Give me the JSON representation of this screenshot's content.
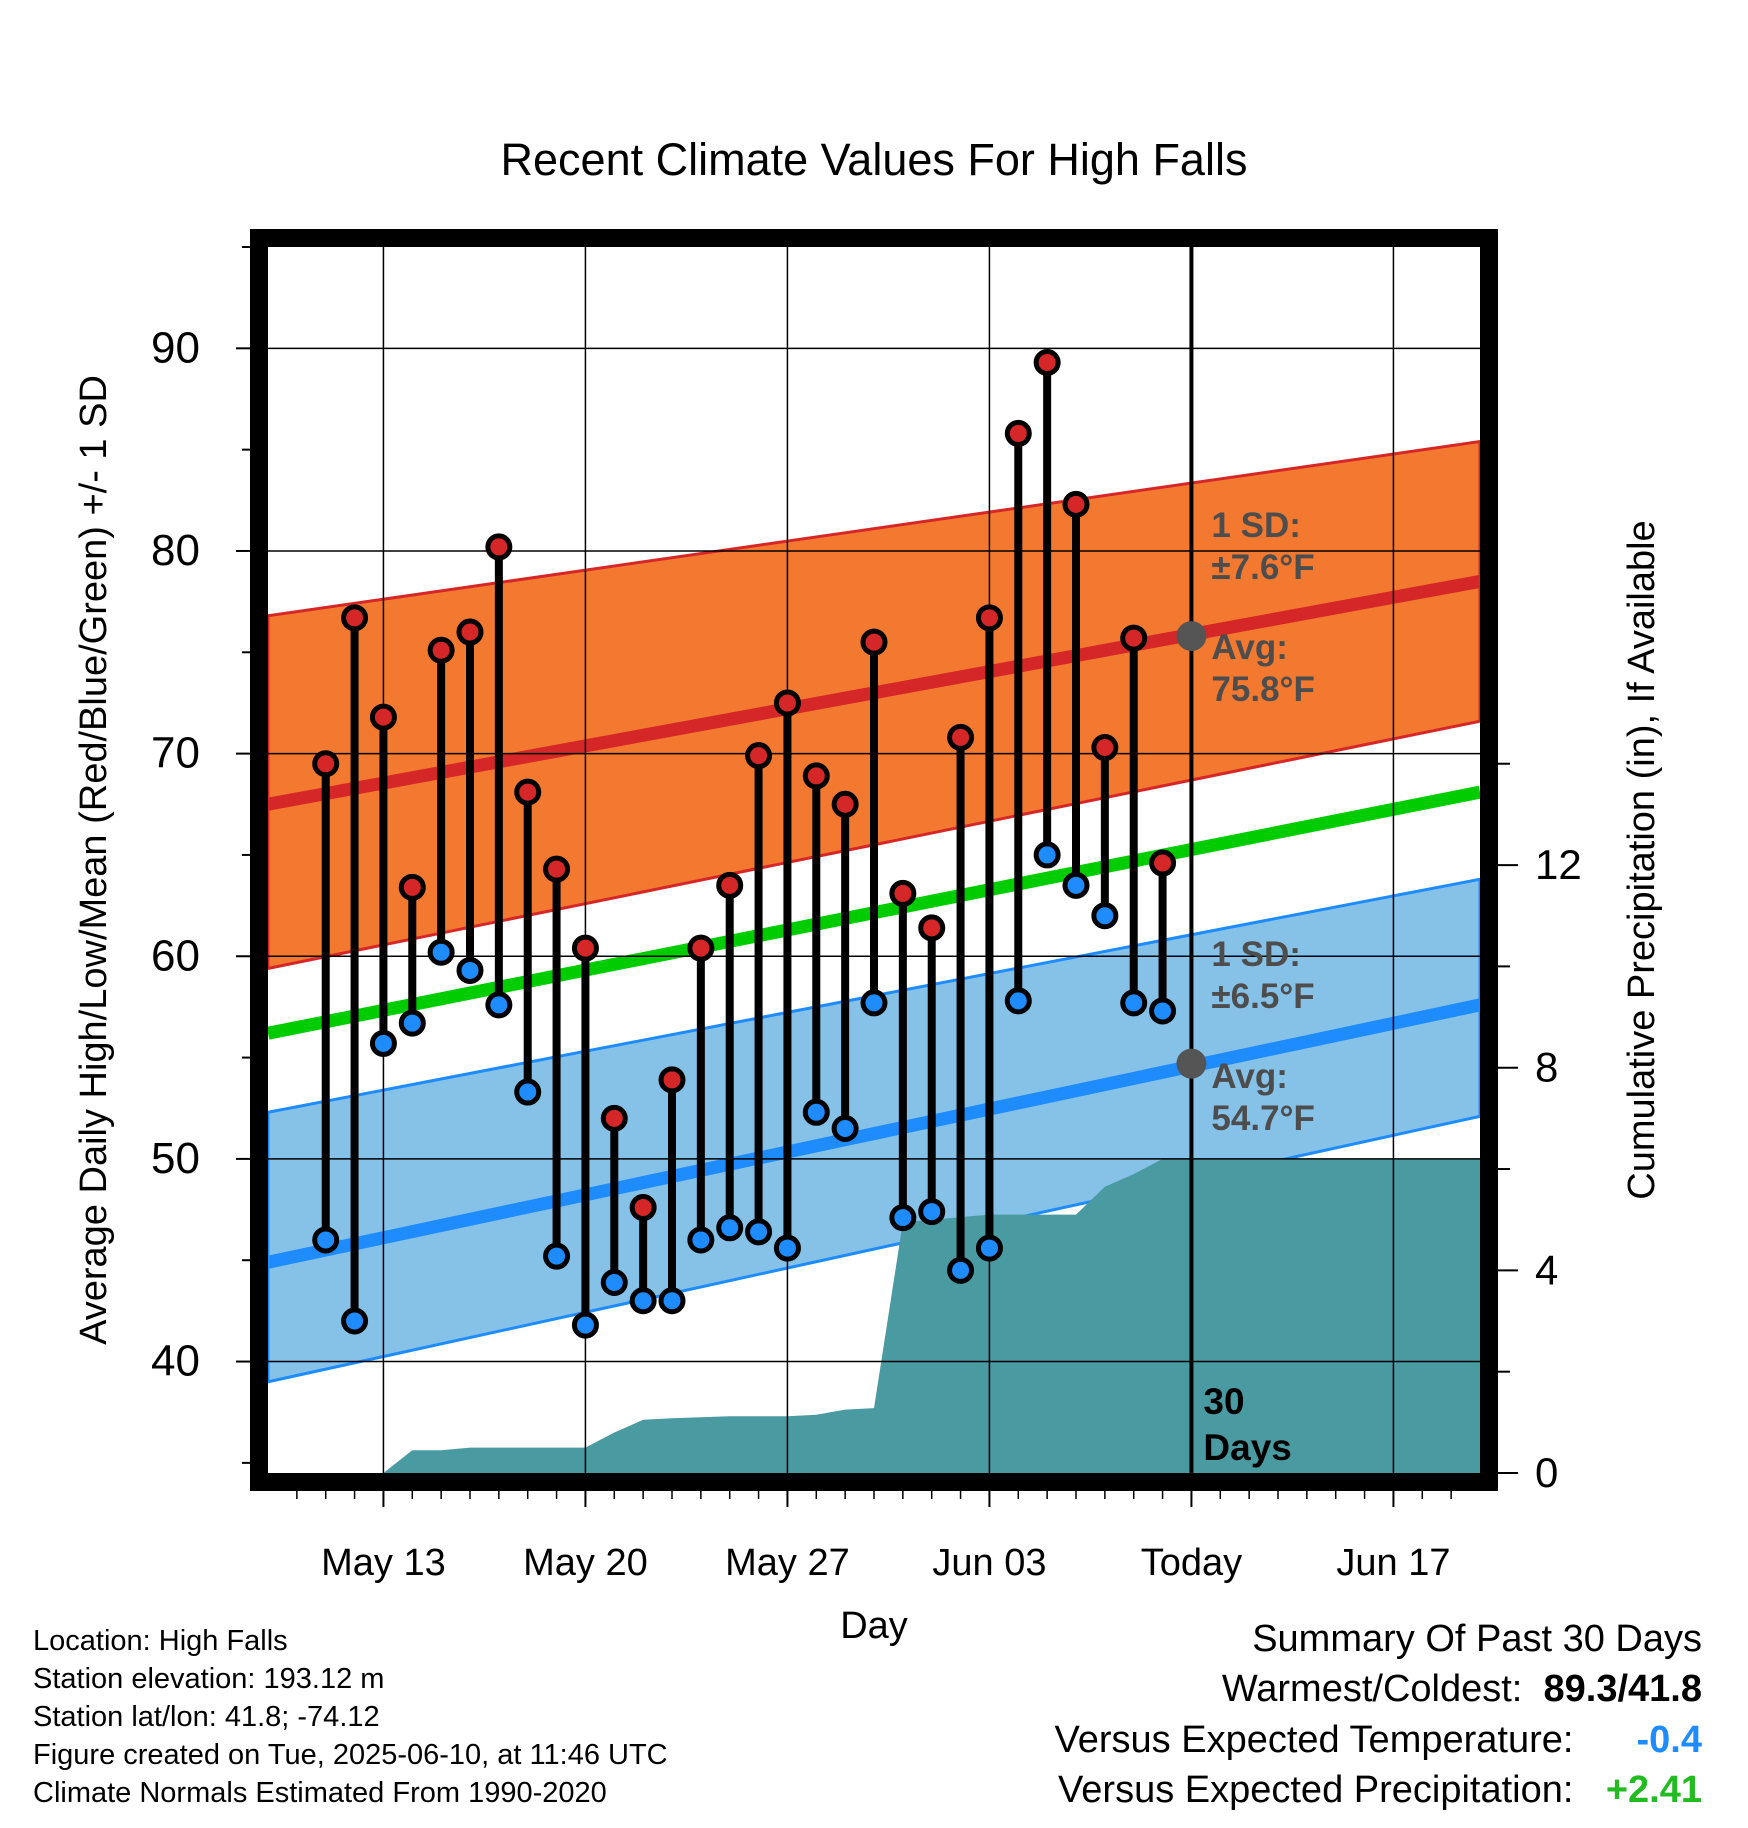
{
  "chart_data": {
    "type": "line",
    "title": "Recent Climate Values For High Falls",
    "xlabel": "Day",
    "ylabel": "Average Daily High/Low/Mean (Red/Blue/Green) +/- 1 SD",
    "y2label": "Cumulative Precipitation (in), If Available",
    "xlim": [
      "2025-05-09",
      "2025-06-20"
    ],
    "ylim": [
      34.5,
      95
    ],
    "y2lim": [
      0,
      24.2
    ],
    "x_ticks": [
      "May 13",
      "May 20",
      "May 27",
      "Jun 03",
      "Today",
      "Jun 17"
    ],
    "y_ticks": [
      40,
      50,
      60,
      70,
      80,
      90
    ],
    "y2_ticks": [
      0,
      4,
      8,
      12
    ],
    "grid": true,
    "today_marker": {
      "date": "2025-06-10",
      "label": "30 Days"
    },
    "normals": {
      "high_avg": {
        "start": 67.5,
        "end": 78.5,
        "color": "#d62728"
      },
      "high_band": {
        "start_lower": 59.4,
        "start_upper": 76.8,
        "end_lower": 71.6,
        "end_upper": 85.4,
        "color": "#f47930"
      },
      "mean_avg": {
        "start": 56.2,
        "end": 68.1,
        "color": "#00cc00"
      },
      "low_avg": {
        "start": 44.9,
        "end": 57.6,
        "color": "#1e8cff"
      },
      "low_band": {
        "start_lower": 39.0,
        "start_upper": 52.3,
        "end_lower": 52.1,
        "end_upper": 63.8,
        "color": "#86c1e8"
      }
    },
    "annotations": {
      "high": {
        "sd_label": "1 SD:",
        "sd_value": "±7.6°F",
        "avg_label": "Avg:",
        "avg_value": "75.8°F",
        "avg": 75.8
      },
      "low": {
        "sd_label": "1 SD:",
        "sd_value": "±6.5°F",
        "avg_label": "Avg:",
        "avg_value": "54.7°F",
        "avg": 54.7
      }
    },
    "series": [
      {
        "name": "High",
        "x": [
          "2025-05-11",
          "2025-05-12",
          "2025-05-13",
          "2025-05-14",
          "2025-05-15",
          "2025-05-16",
          "2025-05-17",
          "2025-05-18",
          "2025-05-19",
          "2025-05-20",
          "2025-05-21",
          "2025-05-22",
          "2025-05-23",
          "2025-05-24",
          "2025-05-25",
          "2025-05-26",
          "2025-05-27",
          "2025-05-28",
          "2025-05-29",
          "2025-05-30",
          "2025-05-31",
          "2025-06-01",
          "2025-06-02",
          "2025-06-03",
          "2025-06-04",
          "2025-06-05",
          "2025-06-06",
          "2025-06-07",
          "2025-06-08",
          "2025-06-09"
        ],
        "values": [
          69.5,
          76.7,
          71.8,
          63.4,
          75.1,
          76.0,
          80.2,
          68.1,
          64.3,
          60.4,
          52.0,
          47.6,
          53.9,
          60.4,
          63.5,
          69.9,
          72.5,
          68.9,
          67.5,
          75.5,
          63.1,
          61.4,
          70.8,
          76.7,
          85.8,
          89.3,
          82.3,
          70.3,
          75.7,
          64.6
        ]
      },
      {
        "name": "Low",
        "x": [
          "2025-05-11",
          "2025-05-12",
          "2025-05-13",
          "2025-05-14",
          "2025-05-15",
          "2025-05-16",
          "2025-05-17",
          "2025-05-18",
          "2025-05-19",
          "2025-05-20",
          "2025-05-21",
          "2025-05-22",
          "2025-05-23",
          "2025-05-24",
          "2025-05-25",
          "2025-05-26",
          "2025-05-27",
          "2025-05-28",
          "2025-05-29",
          "2025-05-30",
          "2025-05-31",
          "2025-06-01",
          "2025-06-02",
          "2025-06-03",
          "2025-06-04",
          "2025-06-05",
          "2025-06-06",
          "2025-06-07",
          "2025-06-08",
          "2025-06-09"
        ],
        "values": [
          46.0,
          42.0,
          55.7,
          56.7,
          60.2,
          59.3,
          57.6,
          53.3,
          45.2,
          41.8,
          43.9,
          43.0,
          43.0,
          46.0,
          46.6,
          46.4,
          45.6,
          52.3,
          51.5,
          57.7,
          47.1,
          47.4,
          44.5,
          45.6,
          57.8,
          65.0,
          63.5,
          62.0,
          57.7,
          57.3
        ]
      },
      {
        "name": "Cumulative Precipitation",
        "x": [
          "2025-05-12",
          "2025-05-13",
          "2025-05-14",
          "2025-05-15",
          "2025-05-16",
          "2025-05-17",
          "2025-05-18",
          "2025-05-19",
          "2025-05-20",
          "2025-05-21",
          "2025-05-22",
          "2025-05-23",
          "2025-05-24",
          "2025-05-25",
          "2025-05-26",
          "2025-05-27",
          "2025-05-28",
          "2025-05-29",
          "2025-05-30",
          "2025-05-31",
          "2025-06-01",
          "2025-06-02",
          "2025-06-03",
          "2025-06-04",
          "2025-06-05",
          "2025-06-06",
          "2025-06-07",
          "2025-06-08",
          "2025-06-09",
          "2025-06-10",
          "2025-06-20"
        ],
        "values": [
          0.0,
          0.0,
          0.45,
          0.45,
          0.5,
          0.5,
          0.5,
          0.5,
          0.5,
          0.8,
          1.05,
          1.08,
          1.1,
          1.12,
          1.12,
          1.12,
          1.15,
          1.25,
          1.28,
          4.95,
          5.0,
          5.05,
          5.1,
          5.1,
          5.1,
          5.1,
          5.65,
          5.9,
          6.2,
          6.2,
          6.2
        ]
      }
    ]
  },
  "info": {
    "location": "Location: High Falls",
    "elevation": "Station elevation: 193.12 m",
    "latlon": "Station lat/lon: 41.8; -74.12",
    "created": "Figure created on Tue, 2025-06-10, at 11:46 UTC",
    "normals": "Climate Normals Estimated From 1990-2020"
  },
  "summary": {
    "heading": "Summary Of Past 30 Days",
    "warm_cold_label": "Warmest/Coldest:",
    "warm_value": "89.3",
    "cold_value": "/41.8",
    "temp_label": "Versus Expected Temperature:",
    "temp_value": "-0.4",
    "temp_color": "#1e8cff",
    "precip_label": "Versus Expected Precipitation:",
    "precip_value": "+2.41",
    "precip_color": "#22bb22"
  }
}
